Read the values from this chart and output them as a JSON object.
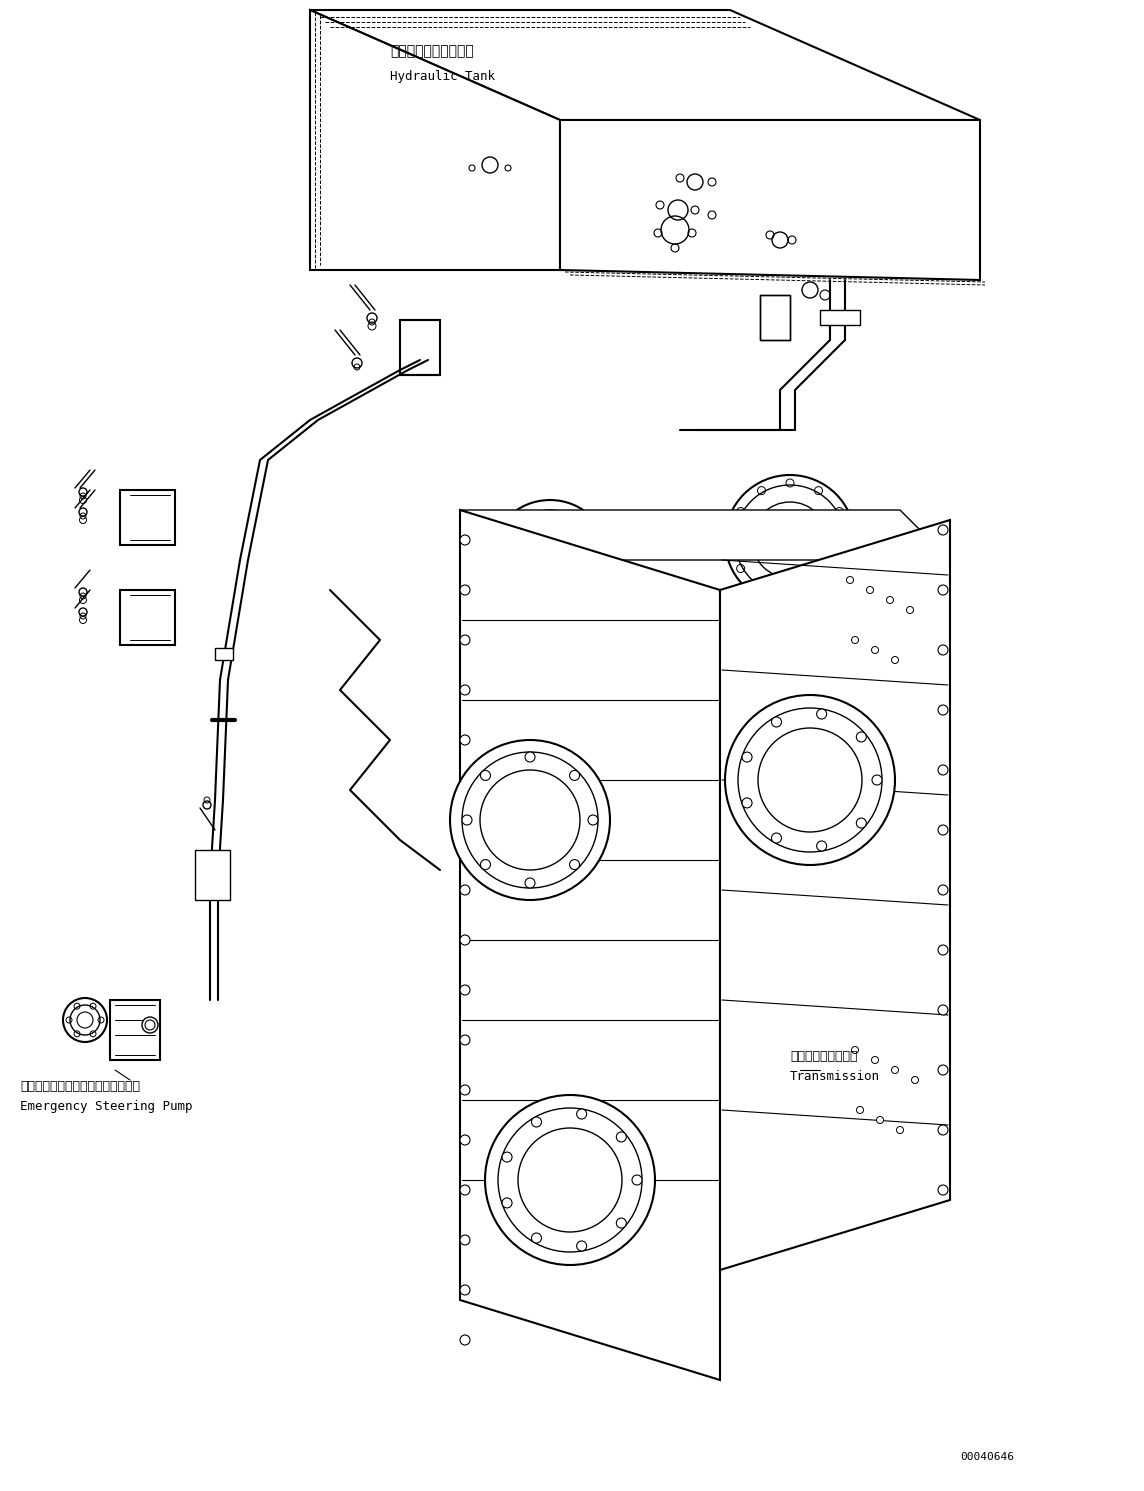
{
  "bg_color": "#ffffff",
  "line_color": "#000000",
  "fig_width": 11.44,
  "fig_height": 14.91,
  "dpi": 100,
  "label_hydraulic_tank_jp": "ハイドロリックタンク",
  "label_hydraulic_tank_en": "Hydraulic Tank",
  "label_esp_jp": "エマージェンシステアリングポンプ",
  "label_esp_en": "Emergency Steering Pump",
  "label_transmission_jp": "トランスミッション",
  "label_transmission_en": "Transmission",
  "part_number": "00040646",
  "font_size_label": 10,
  "font_size_part": 9
}
